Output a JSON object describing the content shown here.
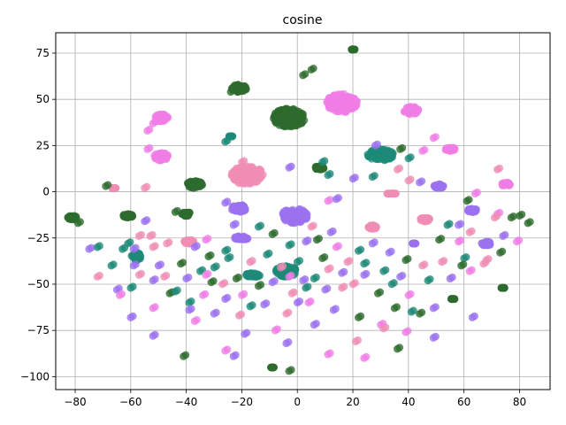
{
  "chart_data": {
    "type": "scatter",
    "title": "cosine",
    "xlabel": "",
    "ylabel": "",
    "xlim": [
      -87,
      91
    ],
    "ylim": [
      -107,
      86
    ],
    "grid": true,
    "xticks": [
      -80,
      -60,
      -40,
      -20,
      0,
      20,
      40,
      60,
      80
    ],
    "yticks": [
      -100,
      -75,
      -50,
      -25,
      0,
      25,
      50,
      75
    ],
    "colors": {
      "dark_green": "#2e6b2e",
      "teal": "#1e8a78",
      "violet": "#9b72ef",
      "pink": "#f08db4",
      "light_magenta": "#f07ee6"
    },
    "clusters": [
      {
        "color": "dark_green",
        "x": -3,
        "y": 40,
        "rx": 7,
        "ry": 7
      },
      {
        "color": "pink",
        "x": -18,
        "y": 9,
        "rx": 7,
        "ry": 7
      },
      {
        "color": "light_magenta",
        "x": 16,
        "y": 48,
        "rx": 7,
        "ry": 7
      },
      {
        "color": "violet",
        "x": -1,
        "y": -13,
        "rx": 6,
        "ry": 6
      },
      {
        "color": "light_magenta",
        "x": -49,
        "y": 19,
        "rx": 4,
        "ry": 4
      },
      {
        "color": "light_magenta",
        "x": -49,
        "y": 40,
        "rx": 4,
        "ry": 4
      },
      {
        "color": "light_magenta",
        "x": 41,
        "y": 44,
        "rx": 4,
        "ry": 4
      },
      {
        "color": "dark_green",
        "x": -21,
        "y": 56,
        "rx": 4,
        "ry": 4
      },
      {
        "color": "dark_green",
        "x": -37,
        "y": 4,
        "rx": 4,
        "ry": 4
      },
      {
        "color": "violet",
        "x": -21,
        "y": -9,
        "rx": 4,
        "ry": 4
      },
      {
        "color": "violet",
        "x": 51,
        "y": 3,
        "rx": 3,
        "ry": 3
      },
      {
        "color": "teal",
        "x": 30,
        "y": 20,
        "rx": 6,
        "ry": 5
      },
      {
        "color": "pink",
        "x": -39,
        "y": -27,
        "rx": 3,
        "ry": 3
      },
      {
        "color": "pink",
        "x": -66,
        "y": 2,
        "rx": 2,
        "ry": 2
      },
      {
        "color": "light_magenta",
        "x": 75,
        "y": 4,
        "rx": 3,
        "ry": 3
      },
      {
        "color": "light_magenta",
        "x": 55,
        "y": 23,
        "rx": 3,
        "ry": 3
      },
      {
        "color": "pink",
        "x": 27,
        "y": -19,
        "rx": 3,
        "ry": 3
      },
      {
        "color": "pink",
        "x": 46,
        "y": -15,
        "rx": 3,
        "ry": 3
      },
      {
        "color": "violet",
        "x": -20,
        "y": -25,
        "rx": 4,
        "ry": 3
      },
      {
        "color": "dark_green",
        "x": -81,
        "y": -14,
        "rx": 3,
        "ry": 3
      },
      {
        "color": "dark_green",
        "x": -61,
        "y": -13,
        "rx": 3,
        "ry": 3
      },
      {
        "color": "dark_green",
        "x": -40,
        "y": -12,
        "rx": 3,
        "ry": 3
      },
      {
        "color": "teal",
        "x": -16,
        "y": -45,
        "rx": 4,
        "ry": 3
      },
      {
        "color": "teal",
        "x": -4,
        "y": -43,
        "rx": 5,
        "ry": 5
      },
      {
        "color": "teal",
        "x": -58,
        "y": -35,
        "rx": 3,
        "ry": 4
      },
      {
        "color": "pink",
        "x": 34,
        "y": -1,
        "rx": 3,
        "ry": 2
      },
      {
        "color": "violet",
        "x": 63,
        "y": -10,
        "rx": 3,
        "ry": 3
      },
      {
        "color": "violet",
        "x": 68,
        "y": -28,
        "rx": 3,
        "ry": 3
      },
      {
        "color": "dark_green",
        "x": 20,
        "y": 77,
        "rx": 2,
        "ry": 2
      },
      {
        "color": "dark_green",
        "x": 8,
        "y": 13,
        "rx": 3,
        "ry": 3
      },
      {
        "color": "teal",
        "x": -24,
        "y": 30,
        "rx": 2,
        "ry": 2
      },
      {
        "color": "violet",
        "x": 42,
        "y": -28,
        "rx": 2,
        "ry": 2
      },
      {
        "color": "dark_green",
        "x": 56,
        "y": -58,
        "rx": 2,
        "ry": 2
      },
      {
        "color": "dark_green",
        "x": 74,
        "y": -52,
        "rx": 2,
        "ry": 2
      },
      {
        "color": "dark_green",
        "x": -9,
        "y": -95,
        "rx": 2,
        "ry": 2
      }
    ],
    "points": [
      {
        "c": "pink",
        "x": -72,
        "y": -46
      },
      {
        "c": "violet",
        "x": -75,
        "y": -31
      },
      {
        "c": "teal",
        "x": -72,
        "y": -30
      },
      {
        "c": "teal",
        "x": -67,
        "y": -40
      },
      {
        "c": "violet",
        "x": -65,
        "y": -53
      },
      {
        "c": "light_magenta",
        "x": -64,
        "y": -56
      },
      {
        "c": "violet",
        "x": -60,
        "y": -68
      },
      {
        "c": "teal",
        "x": -60,
        "y": -52
      },
      {
        "c": "pink",
        "x": -57,
        "y": -45
      },
      {
        "c": "violet",
        "x": -59,
        "y": -31
      },
      {
        "c": "teal",
        "x": -61,
        "y": -28
      },
      {
        "c": "violet",
        "x": -59,
        "y": -40
      },
      {
        "c": "pink",
        "x": -53,
        "y": -24
      },
      {
        "c": "pink",
        "x": -52,
        "y": -30
      },
      {
        "c": "violet",
        "x": -50,
        "y": -40
      },
      {
        "c": "pink",
        "x": -48,
        "y": -46
      },
      {
        "c": "violet",
        "x": -52,
        "y": -48
      },
      {
        "c": "light_magenta",
        "x": -52,
        "y": -63
      },
      {
        "c": "violet",
        "x": -52,
        "y": -78
      },
      {
        "c": "dark_green",
        "x": -46,
        "y": -55
      },
      {
        "c": "pink",
        "x": -47,
        "y": -28
      },
      {
        "c": "dark_green",
        "x": -42,
        "y": -39
      },
      {
        "c": "violet",
        "x": -40,
        "y": -47
      },
      {
        "c": "teal",
        "x": -39,
        "y": -60
      },
      {
        "c": "violet",
        "x": -39,
        "y": -64
      },
      {
        "c": "light_magenta",
        "x": -37,
        "y": -70
      },
      {
        "c": "dark_green",
        "x": -41,
        "y": -89
      },
      {
        "c": "light_magenta",
        "x": -34,
        "y": -56
      },
      {
        "c": "dark_green",
        "x": -32,
        "y": -35
      },
      {
        "c": "teal",
        "x": -30,
        "y": -41
      },
      {
        "c": "dark_green",
        "x": -31,
        "y": -49
      },
      {
        "c": "violet",
        "x": -30,
        "y": -66
      },
      {
        "c": "violet",
        "x": -26,
        "y": -58
      },
      {
        "c": "light_magenta",
        "x": -26,
        "y": -86
      },
      {
        "c": "violet",
        "x": -23,
        "y": -89
      },
      {
        "c": "violet",
        "x": -19,
        "y": -77
      },
      {
        "c": "pink",
        "x": -21,
        "y": -67
      },
      {
        "c": "teal",
        "x": -17,
        "y": -62
      },
      {
        "c": "light_magenta",
        "x": -20,
        "y": -56
      },
      {
        "c": "dark_green",
        "x": -22,
        "y": -47
      },
      {
        "c": "teal",
        "x": -25,
        "y": -36
      },
      {
        "c": "pink",
        "x": -17,
        "y": -38
      },
      {
        "c": "teal",
        "x": -11,
        "y": -34
      },
      {
        "c": "dark_green",
        "x": -14,
        "y": -51
      },
      {
        "c": "violet",
        "x": -12,
        "y": -61
      },
      {
        "c": "light_magenta",
        "x": -8,
        "y": -75
      },
      {
        "c": "pink",
        "x": -4,
        "y": -66
      },
      {
        "c": "violet",
        "x": -4,
        "y": -82
      },
      {
        "c": "pink",
        "x": -2,
        "y": -55
      },
      {
        "c": "teal",
        "x": 0,
        "y": -38
      },
      {
        "c": "violet",
        "x": 3,
        "y": -27
      },
      {
        "c": "violet",
        "x": 2,
        "y": -48
      },
      {
        "c": "light_magenta",
        "x": 4,
        "y": -60
      },
      {
        "c": "violet",
        "x": 6,
        "y": -72
      },
      {
        "c": "violet",
        "x": 10,
        "y": -53
      },
      {
        "c": "pink",
        "x": 11,
        "y": -42
      },
      {
        "c": "dark_green",
        "x": 9,
        "y": -36
      },
      {
        "c": "violet",
        "x": 12,
        "y": -22
      },
      {
        "c": "light_magenta",
        "x": 14,
        "y": -30
      },
      {
        "c": "pink",
        "x": 16,
        "y": -52
      },
      {
        "c": "violet",
        "x": 13,
        "y": -64
      },
      {
        "c": "light_magenta",
        "x": 11,
        "y": -88
      },
      {
        "c": "pink",
        "x": 20,
        "y": -50
      },
      {
        "c": "teal",
        "x": 22,
        "y": -32
      },
      {
        "c": "violet",
        "x": 24,
        "y": -45
      },
      {
        "c": "dark_green",
        "x": 22,
        "y": -68
      },
      {
        "c": "pink",
        "x": 21,
        "y": -81
      },
      {
        "c": "light_magenta",
        "x": 24,
        "y": -90
      },
      {
        "c": "teal",
        "x": 31,
        "y": -43
      },
      {
        "c": "dark_green",
        "x": 29,
        "y": -55
      },
      {
        "c": "light_magenta",
        "x": 30,
        "y": -72
      },
      {
        "c": "teal",
        "x": 34,
        "y": -50
      },
      {
        "c": "dark_green",
        "x": 35,
        "y": -63
      },
      {
        "c": "violet",
        "x": 37,
        "y": -46
      },
      {
        "c": "dark_green",
        "x": 39,
        "y": -37
      },
      {
        "c": "light_magenta",
        "x": 40,
        "y": -56
      },
      {
        "c": "dark_green",
        "x": 44,
        "y": -66
      },
      {
        "c": "light_magenta",
        "x": 39,
        "y": -76
      },
      {
        "c": "dark_green",
        "x": 36,
        "y": -85
      },
      {
        "c": "pink",
        "x": 45,
        "y": -40
      },
      {
        "c": "teal",
        "x": 47,
        "y": -48
      },
      {
        "c": "dark_green",
        "x": 51,
        "y": -26
      },
      {
        "c": "violet",
        "x": 49,
        "y": -63
      },
      {
        "c": "violet",
        "x": 49,
        "y": -79
      },
      {
        "c": "pink",
        "x": 52,
        "y": -38
      },
      {
        "c": "light_magenta",
        "x": 58,
        "y": -27
      },
      {
        "c": "teal",
        "x": 60,
        "y": -36
      },
      {
        "c": "light_magenta",
        "x": 62,
        "y": -43
      },
      {
        "c": "violet",
        "x": 63,
        "y": -68
      },
      {
        "c": "pink",
        "x": 68,
        "y": -37
      },
      {
        "c": "dark_green",
        "x": 73,
        "y": -33
      },
      {
        "c": "light_magenta",
        "x": 72,
        "y": -12
      },
      {
        "c": "dark_green",
        "x": 77,
        "y": -14
      },
      {
        "c": "dark_green",
        "x": 83,
        "y": -17
      },
      {
        "c": "light_magenta",
        "x": 79,
        "y": -27
      },
      {
        "c": "pink",
        "x": 62,
        "y": -22
      },
      {
        "c": "teal",
        "x": 54,
        "y": -18
      },
      {
        "c": "violet",
        "x": 58,
        "y": -18
      },
      {
        "c": "dark_green",
        "x": 61,
        "y": -5
      },
      {
        "c": "light_magenta",
        "x": 64,
        "y": -1
      },
      {
        "c": "pink",
        "x": 72,
        "y": 12
      },
      {
        "c": "violet",
        "x": 44,
        "y": 5
      },
      {
        "c": "pink",
        "x": 40,
        "y": 6
      },
      {
        "c": "light_magenta",
        "x": 45,
        "y": 22
      },
      {
        "c": "light_magenta",
        "x": 49,
        "y": 29
      },
      {
        "c": "teal",
        "x": 40,
        "y": 18
      },
      {
        "c": "pink",
        "x": 36,
        "y": 12
      },
      {
        "c": "dark_green",
        "x": 37,
        "y": 23
      },
      {
        "c": "violet",
        "x": 20,
        "y": 7
      },
      {
        "c": "teal",
        "x": 27,
        "y": 8
      },
      {
        "c": "violet",
        "x": 28,
        "y": 25
      },
      {
        "c": "dark_green",
        "x": 5,
        "y": 66
      },
      {
        "c": "dark_green",
        "x": 2,
        "y": 63
      },
      {
        "c": "violet",
        "x": -3,
        "y": 13
      },
      {
        "c": "teal",
        "x": 9,
        "y": 16
      },
      {
        "c": "teal",
        "x": 11,
        "y": 9
      },
      {
        "c": "light_magenta",
        "x": 11,
        "y": -5
      },
      {
        "c": "violet",
        "x": 14,
        "y": -4
      },
      {
        "c": "pink",
        "x": 5,
        "y": -19
      },
      {
        "c": "dark_green",
        "x": 7,
        "y": -26
      },
      {
        "c": "teal",
        "x": -3,
        "y": -29
      },
      {
        "c": "dark_green",
        "x": -9,
        "y": -23
      },
      {
        "c": "teal",
        "x": -14,
        "y": -19
      },
      {
        "c": "violet",
        "x": -23,
        "y": -18
      },
      {
        "c": "teal",
        "x": -26,
        "y": -32
      },
      {
        "c": "teal",
        "x": -35,
        "y": -43
      },
      {
        "c": "violet",
        "x": -37,
        "y": -30
      },
      {
        "c": "dark_green",
        "x": -44,
        "y": -11
      },
      {
        "c": "dark_green",
        "x": -69,
        "y": 3
      },
      {
        "c": "pink",
        "x": -55,
        "y": 2
      },
      {
        "c": "light_magenta",
        "x": -54,
        "y": 23
      },
      {
        "c": "light_magenta",
        "x": -54,
        "y": 33
      },
      {
        "c": "light_magenta",
        "x": -52,
        "y": 37
      },
      {
        "c": "violet",
        "x": -26,
        "y": -6
      },
      {
        "c": "pink",
        "x": -20,
        "y": 16
      },
      {
        "c": "teal",
        "x": -26,
        "y": 27
      },
      {
        "c": "dark_green",
        "x": -24,
        "y": 54
      },
      {
        "c": "light_magenta",
        "x": -33,
        "y": -26
      },
      {
        "c": "dark_green",
        "x": -35,
        "y": 3
      },
      {
        "c": "teal",
        "x": -63,
        "y": -31
      },
      {
        "c": "violet",
        "x": -55,
        "y": -16
      },
      {
        "c": "dark_green",
        "x": -79,
        "y": -17
      },
      {
        "c": "pink",
        "x": -57,
        "y": -24
      },
      {
        "c": "teal",
        "x": -44,
        "y": -54
      },
      {
        "c": "light_magenta",
        "x": -33,
        "y": -45
      },
      {
        "c": "pink",
        "x": -27,
        "y": -50
      },
      {
        "c": "violet",
        "x": -9,
        "y": -49
      },
      {
        "c": "pink",
        "x": -6,
        "y": -41
      },
      {
        "c": "light_magenta",
        "x": -3,
        "y": -46
      },
      {
        "c": "teal",
        "x": 3,
        "y": -52
      },
      {
        "c": "teal",
        "x": 6,
        "y": -47
      },
      {
        "c": "violet",
        "x": 0,
        "y": -60
      },
      {
        "c": "dark_green",
        "x": -3,
        "y": -97
      },
      {
        "c": "violet",
        "x": 16,
        "y": -44
      },
      {
        "c": "pink",
        "x": 18,
        "y": -38
      },
      {
        "c": "teal",
        "x": 24,
        "y": -39
      },
      {
        "c": "violet",
        "x": 27,
        "y": -28
      },
      {
        "c": "violet",
        "x": 33,
        "y": -33
      },
      {
        "c": "pink",
        "x": 31,
        "y": -74
      },
      {
        "c": "teal",
        "x": 41,
        "y": -65
      },
      {
        "c": "violet",
        "x": 55,
        "y": -47
      },
      {
        "c": "dark_green",
        "x": 59,
        "y": -40
      },
      {
        "c": "pink",
        "x": 67,
        "y": -39
      },
      {
        "c": "violet",
        "x": 74,
        "y": -24
      },
      {
        "c": "pink",
        "x": 71,
        "y": -14
      },
      {
        "c": "dark_green",
        "x": 80,
        "y": -13
      }
    ]
  }
}
